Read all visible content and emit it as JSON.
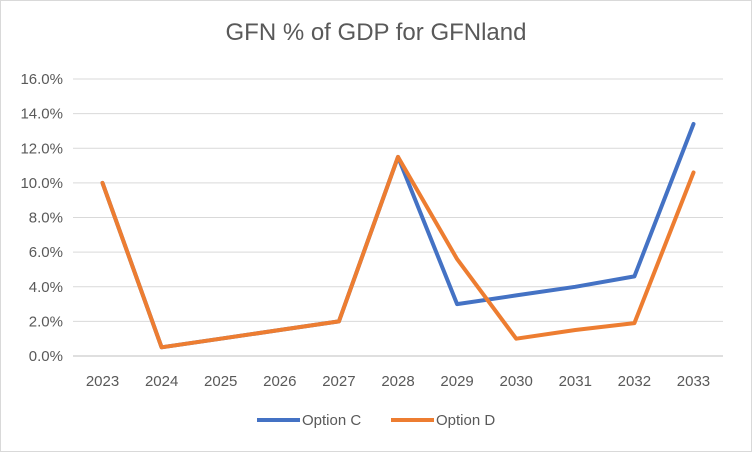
{
  "chart_data": {
    "type": "line",
    "title": "GFN % of GDP for GFNland",
    "xlabel": "",
    "ylabel": "",
    "categories": [
      "2023",
      "2024",
      "2025",
      "2026",
      "2027",
      "2028",
      "2029",
      "2030",
      "2031",
      "2032",
      "2033"
    ],
    "ylim": [
      0,
      16
    ],
    "yticks": [
      0,
      2,
      4,
      6,
      8,
      10,
      12,
      14,
      16
    ],
    "ytick_labels": [
      "0.0%",
      "2.0%",
      "4.0%",
      "6.0%",
      "8.0%",
      "10.0%",
      "12.0%",
      "14.0%",
      "16.0%"
    ],
    "grid": true,
    "legend_position": "bottom",
    "series": [
      {
        "name": "Option C",
        "color": "#4472C4",
        "values": [
          10.0,
          0.5,
          1.0,
          1.5,
          2.0,
          11.5,
          3.0,
          3.5,
          4.0,
          4.6,
          13.4
        ]
      },
      {
        "name": "Option D",
        "color": "#ED7D31",
        "values": [
          10.0,
          0.5,
          1.0,
          1.5,
          2.0,
          11.5,
          5.6,
          1.0,
          1.5,
          1.9,
          10.6
        ]
      }
    ]
  }
}
